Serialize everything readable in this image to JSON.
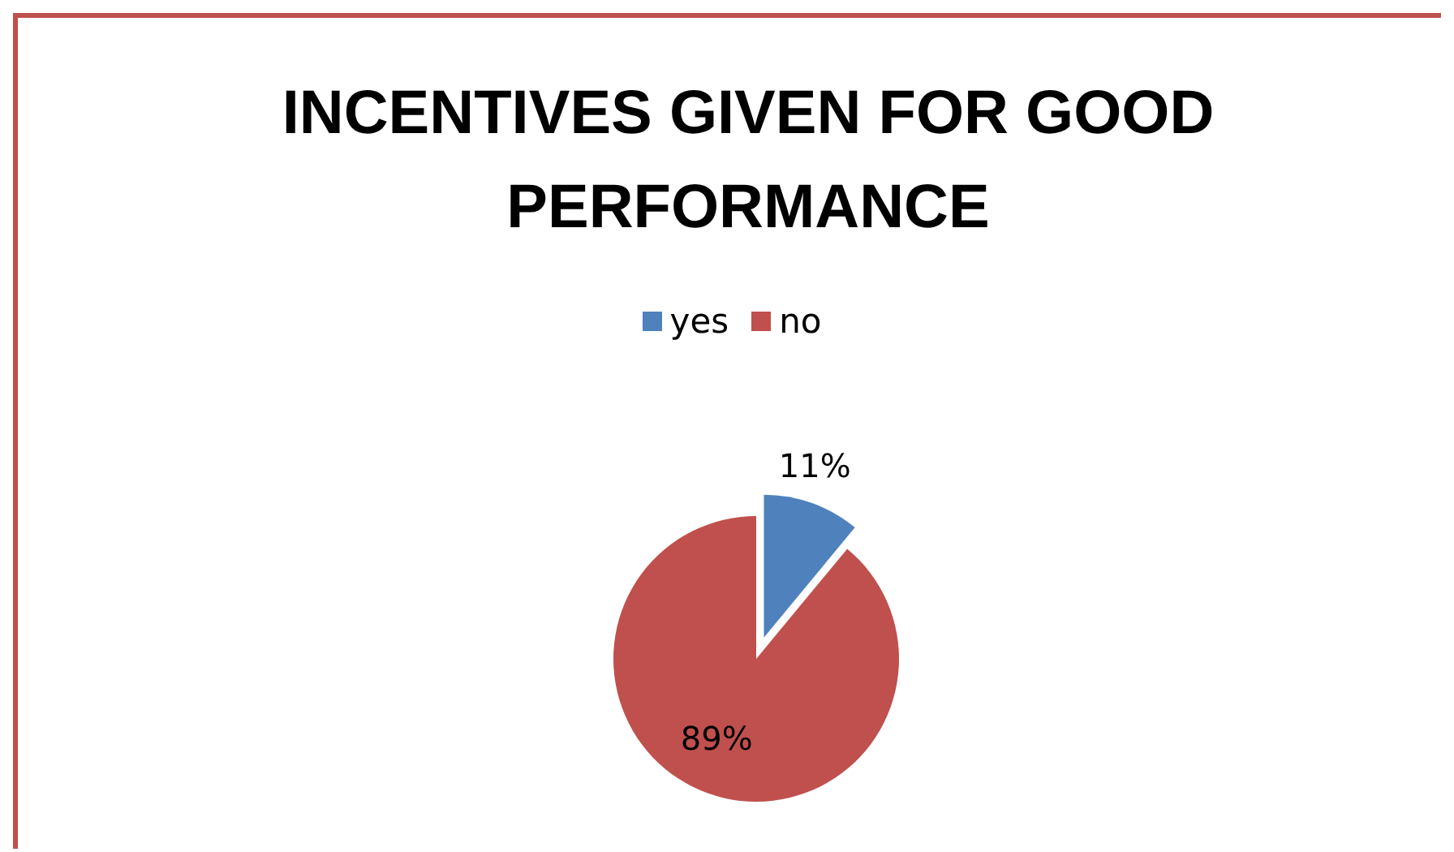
{
  "chart_data": {
    "type": "pie",
    "title": "INCENTIVES GIVEN FOR GOOD PERFORMANCE",
    "categories": [
      "yes",
      "no"
    ],
    "values": [
      11,
      89
    ],
    "colors": [
      "#4f81bd",
      "#c0504d"
    ],
    "value_labels": [
      "11%",
      "89%"
    ],
    "legend": "top"
  }
}
